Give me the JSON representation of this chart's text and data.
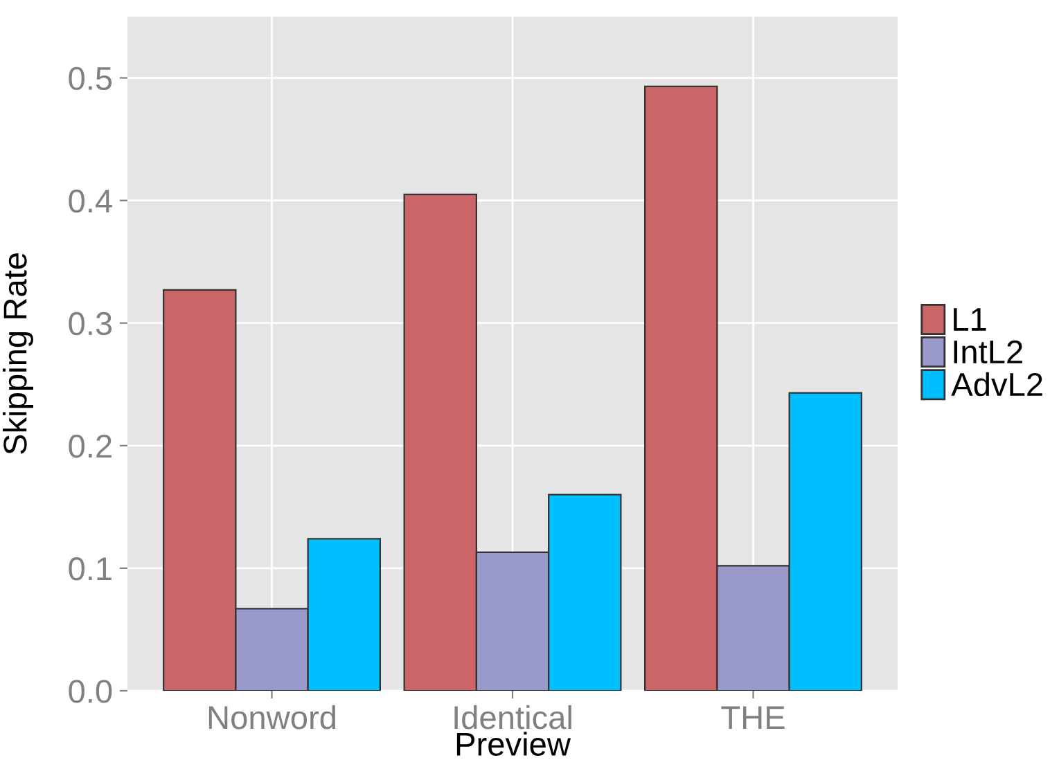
{
  "chart_data": {
    "type": "bar",
    "xlabel": "Preview",
    "ylabel": "Skipping Rate",
    "categories": [
      "Nonword",
      "Identical",
      "THE"
    ],
    "series": [
      {
        "name": "L1",
        "color": "#cb6567",
        "values": [
          0.327,
          0.405,
          0.493
        ]
      },
      {
        "name": "IntL2",
        "color": "#9999cc",
        "values": [
          0.067,
          0.113,
          0.102
        ]
      },
      {
        "name": "AdvL2",
        "color": "#00bfff",
        "values": [
          0.124,
          0.16,
          0.243
        ]
      }
    ],
    "ylim": [
      0,
      0.55
    ],
    "yticks": [
      {
        "value": 0,
        "label": "0.0"
      },
      0.1,
      0.2,
      0.3,
      0.4,
      0.5
    ],
    "grid": true,
    "legend": "right"
  }
}
